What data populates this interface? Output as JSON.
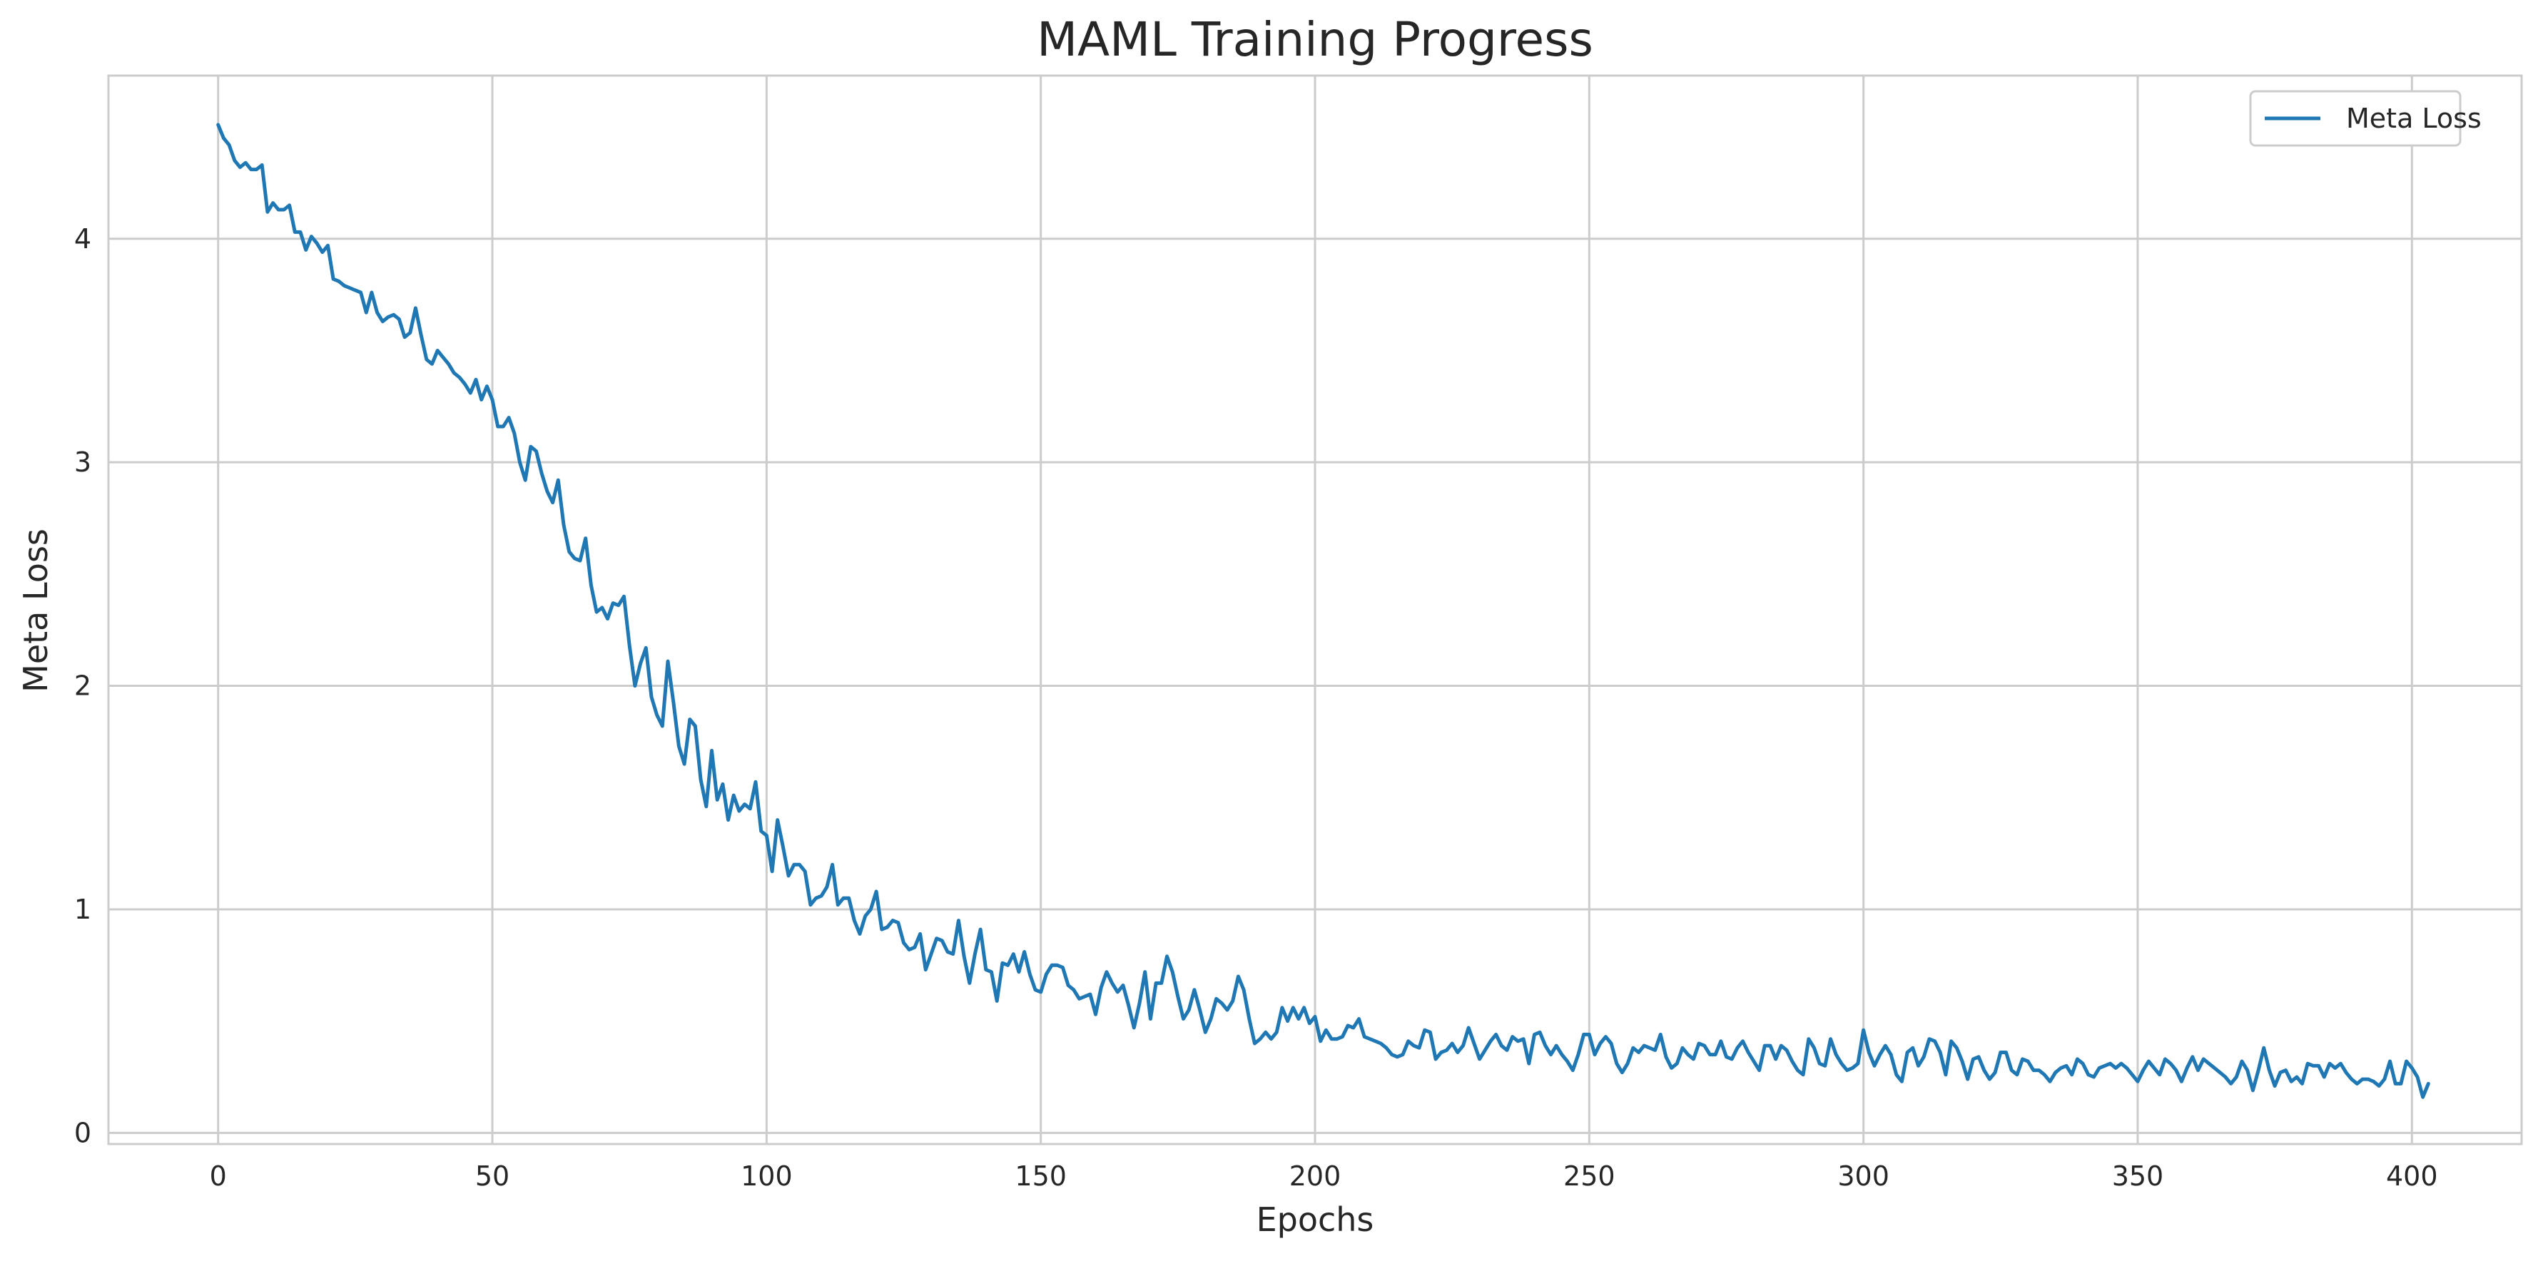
{
  "chart_data": {
    "type": "line",
    "title": "MAML Training Progress",
    "xlabel": "Epochs",
    "ylabel": "Meta Loss",
    "xlim": [
      -20,
      420
    ],
    "ylim": [
      -0.05,
      4.73
    ],
    "xticks": [
      0,
      50,
      100,
      150,
      200,
      250,
      300,
      350,
      400
    ],
    "yticks": [
      0,
      1,
      2,
      3,
      4
    ],
    "grid": true,
    "legend_position": "top-right",
    "colors": {
      "series": "#1f77b4",
      "grid": "#cccccc",
      "frame": "#cccccc"
    },
    "series": [
      {
        "name": "Meta Loss",
        "x_start": 0,
        "x_step": 1,
        "values": [
          4.51,
          4.45,
          4.42,
          4.35,
          4.32,
          4.34,
          4.31,
          4.31,
          4.33,
          4.12,
          4.16,
          4.13,
          4.13,
          4.15,
          4.03,
          4.03,
          3.95,
          4.01,
          3.98,
          3.94,
          3.97,
          3.82,
          3.81,
          3.79,
          3.78,
          3.77,
          3.76,
          3.67,
          3.76,
          3.67,
          3.63,
          3.65,
          3.66,
          3.64,
          3.56,
          3.58,
          3.69,
          3.57,
          3.46,
          3.44,
          3.5,
          3.47,
          3.44,
          3.4,
          3.38,
          3.35,
          3.31,
          3.37,
          3.28,
          3.34,
          3.28,
          3.16,
          3.16,
          3.2,
          3.13,
          3.0,
          2.92,
          3.07,
          3.05,
          2.95,
          2.87,
          2.82,
          2.92,
          2.72,
          2.6,
          2.57,
          2.56,
          2.66,
          2.45,
          2.33,
          2.35,
          2.3,
          2.37,
          2.36,
          2.4,
          2.18,
          2.0,
          2.1,
          2.17,
          1.95,
          1.87,
          1.82,
          2.11,
          1.93,
          1.73,
          1.65,
          1.85,
          1.82,
          1.58,
          1.46,
          1.71,
          1.49,
          1.56,
          1.4,
          1.51,
          1.44,
          1.47,
          1.45,
          1.57,
          1.35,
          1.33,
          1.17,
          1.4,
          1.28,
          1.15,
          1.2,
          1.2,
          1.17,
          1.02,
          1.05,
          1.06,
          1.1,
          1.2,
          1.02,
          1.05,
          1.05,
          0.95,
          0.89,
          0.97,
          1.0,
          1.08,
          0.91,
          0.92,
          0.95,
          0.94,
          0.85,
          0.82,
          0.83,
          0.89,
          0.73,
          0.8,
          0.87,
          0.86,
          0.81,
          0.8,
          0.95,
          0.79,
          0.67,
          0.8,
          0.91,
          0.73,
          0.72,
          0.59,
          0.76,
          0.75,
          0.8,
          0.72,
          0.81,
          0.71,
          0.64,
          0.63,
          0.71,
          0.75,
          0.75,
          0.74,
          0.66,
          0.64,
          0.6,
          0.61,
          0.62,
          0.53,
          0.65,
          0.72,
          0.67,
          0.63,
          0.66,
          0.57,
          0.47,
          0.58,
          0.72,
          0.51,
          0.67,
          0.67,
          0.79,
          0.72,
          0.61,
          0.51,
          0.55,
          0.64,
          0.55,
          0.45,
          0.51,
          0.6,
          0.58,
          0.55,
          0.59,
          0.7,
          0.64,
          0.51,
          0.4,
          0.42,
          0.45,
          0.42,
          0.45,
          0.56,
          0.5,
          0.56,
          0.51,
          0.56,
          0.49,
          0.52,
          0.41,
          0.46,
          0.42,
          0.42,
          0.43,
          0.48,
          0.47,
          0.51,
          0.43,
          0.42,
          0.41,
          0.4,
          0.38,
          0.35,
          0.34,
          0.35,
          0.41,
          0.39,
          0.38,
          0.46,
          0.45,
          0.33,
          0.36,
          0.37,
          0.4,
          0.36,
          0.39,
          0.47,
          0.4,
          0.33,
          0.37,
          0.41,
          0.44,
          0.39,
          0.37,
          0.43,
          0.41,
          0.42,
          0.31,
          0.44,
          0.45,
          0.39,
          0.35,
          0.39,
          0.35,
          0.32,
          0.28,
          0.35,
          0.44,
          0.44,
          0.35,
          0.4,
          0.43,
          0.4,
          0.31,
          0.27,
          0.31,
          0.38,
          0.36,
          0.39,
          0.38,
          0.37,
          0.44,
          0.34,
          0.29,
          0.31,
          0.38,
          0.35,
          0.33,
          0.4,
          0.39,
          0.35,
          0.35,
          0.41,
          0.34,
          0.33,
          0.38,
          0.41,
          0.36,
          0.32,
          0.28,
          0.39,
          0.39,
          0.33,
          0.39,
          0.37,
          0.32,
          0.28,
          0.26,
          0.42,
          0.38,
          0.31,
          0.3,
          0.42,
          0.35,
          0.31,
          0.28,
          0.29,
          0.31,
          0.46,
          0.36,
          0.3,
          0.35,
          0.39,
          0.35,
          0.26,
          0.23,
          0.36,
          0.38,
          0.3,
          0.34,
          0.42,
          0.41,
          0.36,
          0.26,
          0.41,
          0.38,
          0.32,
          0.24,
          0.33,
          0.34,
          0.28,
          0.24,
          0.27,
          0.36,
          0.36,
          0.28,
          0.26,
          0.33,
          0.32,
          0.28,
          0.28,
          0.26,
          0.23,
          0.27,
          0.29,
          0.3,
          0.26,
          0.33,
          0.31,
          0.26,
          0.25,
          0.29,
          0.3,
          0.31,
          0.29,
          0.31,
          0.29,
          0.26,
          0.23,
          0.28,
          0.32,
          0.29,
          0.26,
          0.33,
          0.31,
          0.28,
          0.23,
          0.29,
          0.34,
          0.28,
          0.33,
          0.31,
          0.29,
          0.27,
          0.25,
          0.22,
          0.25,
          0.32,
          0.28,
          0.19,
          0.28,
          0.38,
          0.28,
          0.21,
          0.27,
          0.28,
          0.23,
          0.25,
          0.22,
          0.31,
          0.3,
          0.3,
          0.25,
          0.31,
          0.29,
          0.31,
          0.27,
          0.24,
          0.22,
          0.24,
          0.24,
          0.23,
          0.21,
          0.24,
          0.32,
          0.22,
          0.22,
          0.32,
          0.29,
          0.25,
          0.16,
          0.22
        ]
      }
    ]
  }
}
